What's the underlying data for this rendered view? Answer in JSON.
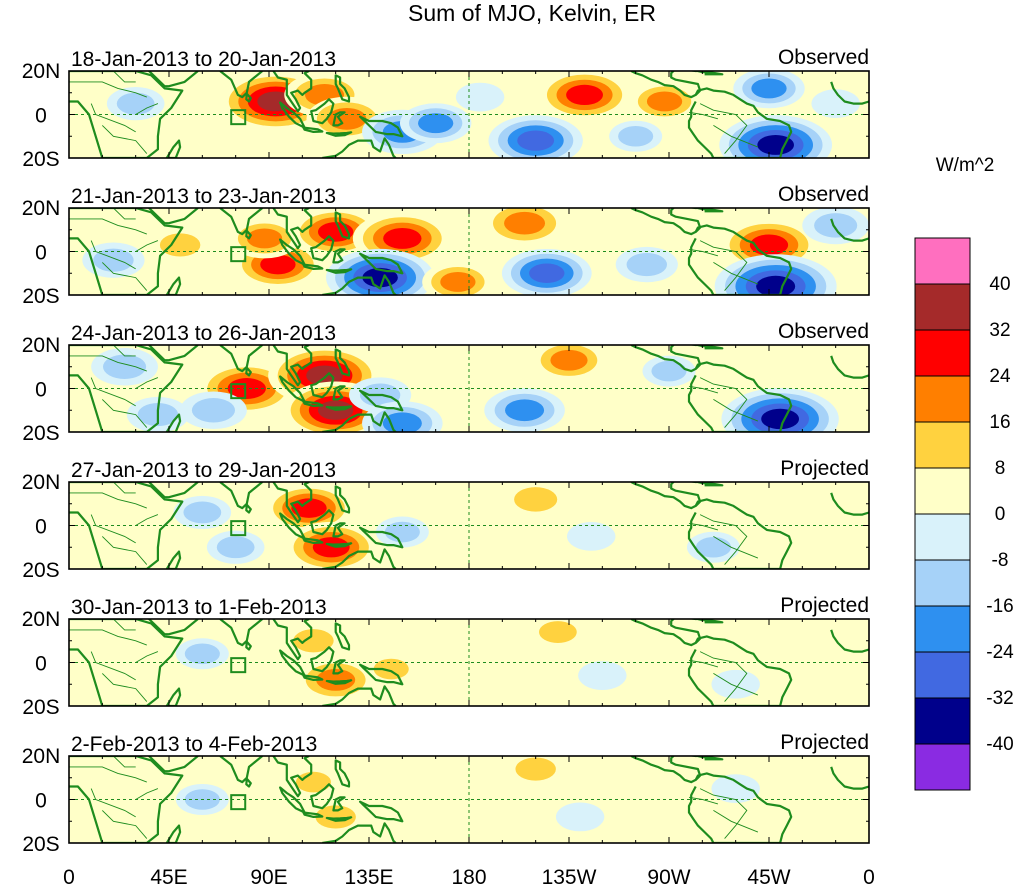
{
  "title": "Sum of MJO, Kelvin, ER",
  "units": "W/m^2",
  "lat_labels": [
    "20N",
    "0",
    "20S"
  ],
  "lon_labels": [
    "0",
    "45E",
    "90E",
    "135E",
    "180",
    "135W",
    "90W",
    "45W",
    "0"
  ],
  "panels": [
    {
      "dates": "18-Jan-2013 to 20-Jan-2013",
      "status": "Observed"
    },
    {
      "dates": "21-Jan-2013 to 23-Jan-2013",
      "status": "Observed"
    },
    {
      "dates": "24-Jan-2013 to 26-Jan-2013",
      "status": "Observed"
    },
    {
      "dates": "27-Jan-2013 to 29-Jan-2013",
      "status": "Projected"
    },
    {
      "dates": "30-Jan-2013 to 1-Feb-2013",
      "status": "Projected"
    },
    {
      "dates": "2-Feb-2013 to 4-Feb-2013",
      "status": "Projected"
    }
  ],
  "colorbar": {
    "labels": [
      "40",
      "32",
      "24",
      "16",
      "8",
      "0",
      "-8",
      "-16",
      "-24",
      "-32",
      "-40"
    ],
    "colors": [
      "#ff6fbf",
      "#a52a2a",
      "#ff0000",
      "#ff7f00",
      "#ffd23f",
      "#ffffc8",
      "#d9f2fa",
      "#a6d2f8",
      "#2e90f0",
      "#4169e1",
      "#00008b",
      "#8a2be2"
    ]
  },
  "palette": {
    "land_outline": "#1e8c1e",
    "equator_line": "#1e8c1e",
    "background": "#ffffc8"
  },
  "anomalies": [
    [
      {
        "lon": 93,
        "lat": 6,
        "value": 36
      },
      {
        "lon": 115,
        "lat": 9,
        "value": 22
      },
      {
        "lon": 125,
        "lat": -2,
        "value": 22
      },
      {
        "lon": 150,
        "lat": -8,
        "value": -22
      },
      {
        "lon": 165,
        "lat": -4,
        "value": -18
      },
      {
        "lon": 210,
        "lat": -12,
        "value": -28
      },
      {
        "lon": 232,
        "lat": 9,
        "value": 28
      },
      {
        "lon": 268,
        "lat": 6,
        "value": 18
      },
      {
        "lon": 318,
        "lat": -14,
        "value": -36
      },
      {
        "lon": 315,
        "lat": 12,
        "value": -18
      },
      {
        "lon": 30,
        "lat": 5,
        "value": -12
      },
      {
        "lon": 55,
        "lat": -4,
        "value": 8
      },
      {
        "lon": 255,
        "lat": -10,
        "value": -10
      },
      {
        "lon": 345,
        "lat": 5,
        "value": -8
      },
      {
        "lon": 185,
        "lat": 8,
        "value": -8
      }
    ],
    [
      {
        "lon": 94,
        "lat": -6,
        "value": 26
      },
      {
        "lon": 88,
        "lat": 6,
        "value": 18
      },
      {
        "lon": 120,
        "lat": 9,
        "value": 26
      },
      {
        "lon": 150,
        "lat": 6,
        "value": 30
      },
      {
        "lon": 140,
        "lat": -12,
        "value": -34
      },
      {
        "lon": 175,
        "lat": -14,
        "value": 18
      },
      {
        "lon": 205,
        "lat": 13,
        "value": 24
      },
      {
        "lon": 215,
        "lat": -10,
        "value": -26
      },
      {
        "lon": 315,
        "lat": 3,
        "value": 30
      },
      {
        "lon": 318,
        "lat": -16,
        "value": -40
      },
      {
        "lon": 50,
        "lat": 3,
        "value": 14
      },
      {
        "lon": 20,
        "lat": -4,
        "value": -14
      },
      {
        "lon": 260,
        "lat": -6,
        "value": -14
      },
      {
        "lon": 345,
        "lat": 12,
        "value": -16
      }
    ],
    [
      {
        "lon": 80,
        "lat": 0,
        "value": 30
      },
      {
        "lon": 115,
        "lat": 6,
        "value": 36
      },
      {
        "lon": 120,
        "lat": -10,
        "value": 34
      },
      {
        "lon": 65,
        "lat": -10,
        "value": -16
      },
      {
        "lon": 140,
        "lat": -3,
        "value": -14
      },
      {
        "lon": 150,
        "lat": -16,
        "value": -22
      },
      {
        "lon": 225,
        "lat": 13,
        "value": 20
      },
      {
        "lon": 205,
        "lat": -10,
        "value": -22
      },
      {
        "lon": 320,
        "lat": -14,
        "value": -38
      },
      {
        "lon": 25,
        "lat": 10,
        "value": -16
      },
      {
        "lon": 40,
        "lat": -12,
        "value": -14
      },
      {
        "lon": 270,
        "lat": 8,
        "value": -10
      }
    ],
    [
      {
        "lon": 108,
        "lat": 8,
        "value": 26
      },
      {
        "lon": 118,
        "lat": -10,
        "value": 28
      },
      {
        "lon": 60,
        "lat": 6,
        "value": -12
      },
      {
        "lon": 75,
        "lat": -10,
        "value": -12
      },
      {
        "lon": 150,
        "lat": -3,
        "value": -10
      },
      {
        "lon": 210,
        "lat": 12,
        "value": 16
      },
      {
        "lon": 235,
        "lat": -5,
        "value": -8
      },
      {
        "lon": 290,
        "lat": -10,
        "value": -10
      },
      {
        "lon": 20,
        "lat": -10,
        "value": 8
      }
    ],
    [
      {
        "lon": 110,
        "lat": 10,
        "value": 14
      },
      {
        "lon": 120,
        "lat": -8,
        "value": 22
      },
      {
        "lon": 145,
        "lat": -3,
        "value": 10
      },
      {
        "lon": 60,
        "lat": 4,
        "value": -10
      },
      {
        "lon": 220,
        "lat": 14,
        "value": 12
      },
      {
        "lon": 240,
        "lat": -6,
        "value": -8
      },
      {
        "lon": 300,
        "lat": -10,
        "value": -8
      }
    ],
    [
      {
        "lon": 110,
        "lat": 8,
        "value": 10
      },
      {
        "lon": 120,
        "lat": -8,
        "value": 14
      },
      {
        "lon": 140,
        "lat": -6,
        "value": 8
      },
      {
        "lon": 60,
        "lat": 0,
        "value": -10
      },
      {
        "lon": 210,
        "lat": 14,
        "value": 14
      },
      {
        "lon": 230,
        "lat": -8,
        "value": -8
      },
      {
        "lon": 300,
        "lat": 5,
        "value": -8
      }
    ]
  ]
}
